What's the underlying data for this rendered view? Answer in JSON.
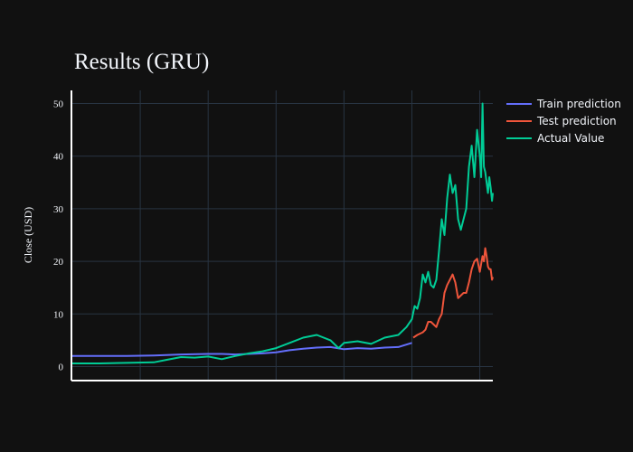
{
  "chart_data": {
    "type": "line",
    "title": "Results (GRU)",
    "xlabel": "",
    "ylabel": "Close (USD)",
    "ylim": [
      -2.5,
      52.5
    ],
    "xlim": [
      0,
      1548
    ],
    "yticks": [
      0,
      10,
      20,
      30,
      40,
      50
    ],
    "xgrid": [
      250,
      500,
      750,
      1000,
      1250,
      1500
    ],
    "grid": true,
    "legend_position": "top-right",
    "series": [
      {
        "name": "Train prediction",
        "color": "#636efa",
        "x": [
          0,
          100,
          200,
          300,
          400,
          500,
          550,
          600,
          650,
          700,
          750,
          800,
          850,
          900,
          950,
          1000,
          1050,
          1100,
          1150,
          1200,
          1250
        ],
        "y": [
          2.0,
          2.0,
          2.0,
          2.1,
          2.3,
          2.4,
          2.4,
          2.3,
          2.4,
          2.5,
          2.7,
          3.1,
          3.4,
          3.6,
          3.7,
          3.3,
          3.5,
          3.4,
          3.6,
          3.7,
          4.5
        ]
      },
      {
        "name": "Test prediction",
        "color": "#ef553b",
        "x": [
          1255,
          1270,
          1290,
          1300,
          1310,
          1320,
          1330,
          1340,
          1350,
          1360,
          1370,
          1380,
          1390,
          1400,
          1410,
          1420,
          1430,
          1440,
          1450,
          1460,
          1470,
          1480,
          1490,
          1500,
          1505,
          1510,
          1515,
          1520,
          1525,
          1530,
          1535,
          1540,
          1545,
          1548
        ],
        "y": [
          5.5,
          6.0,
          6.5,
          7.0,
          8.5,
          8.5,
          8.0,
          7.5,
          9.0,
          10.0,
          14.0,
          15.5,
          16.5,
          17.5,
          16.0,
          13.0,
          13.5,
          14.0,
          14.0,
          16.0,
          18.5,
          20.0,
          20.5,
          18.0,
          19.5,
          21.0,
          20.0,
          22.5,
          21.0,
          19.0,
          18.5,
          18.5,
          16.5,
          17.0
        ]
      },
      {
        "name": "Actual Value",
        "color": "#00cc96",
        "x": [
          0,
          100,
          200,
          300,
          350,
          400,
          450,
          500,
          550,
          600,
          650,
          700,
          750,
          800,
          850,
          900,
          950,
          980,
          1000,
          1050,
          1100,
          1150,
          1200,
          1230,
          1250,
          1260,
          1270,
          1280,
          1290,
          1300,
          1310,
          1320,
          1330,
          1340,
          1350,
          1360,
          1370,
          1380,
          1390,
          1400,
          1410,
          1420,
          1430,
          1440,
          1450,
          1460,
          1470,
          1480,
          1490,
          1500,
          1505,
          1510,
          1515,
          1520,
          1525,
          1530,
          1535,
          1540,
          1545,
          1548
        ],
        "y": [
          0.6,
          0.6,
          0.7,
          0.8,
          1.3,
          1.8,
          1.7,
          1.9,
          1.4,
          2.0,
          2.5,
          2.9,
          3.5,
          4.5,
          5.5,
          6.0,
          5.0,
          3.5,
          4.5,
          4.8,
          4.3,
          5.5,
          6.0,
          7.5,
          9.0,
          11.5,
          11.0,
          13.0,
          17.5,
          16.0,
          18.0,
          15.5,
          15.0,
          16.5,
          22.0,
          28.0,
          25.0,
          32.0,
          36.5,
          33.0,
          34.5,
          28.0,
          26.0,
          28.0,
          30.0,
          38.0,
          42.0,
          36.0,
          45.0,
          40.0,
          36.0,
          50.0,
          38.0,
          37.0,
          35.0,
          33.0,
          36.0,
          34.0,
          31.5,
          33.0
        ]
      }
    ]
  }
}
